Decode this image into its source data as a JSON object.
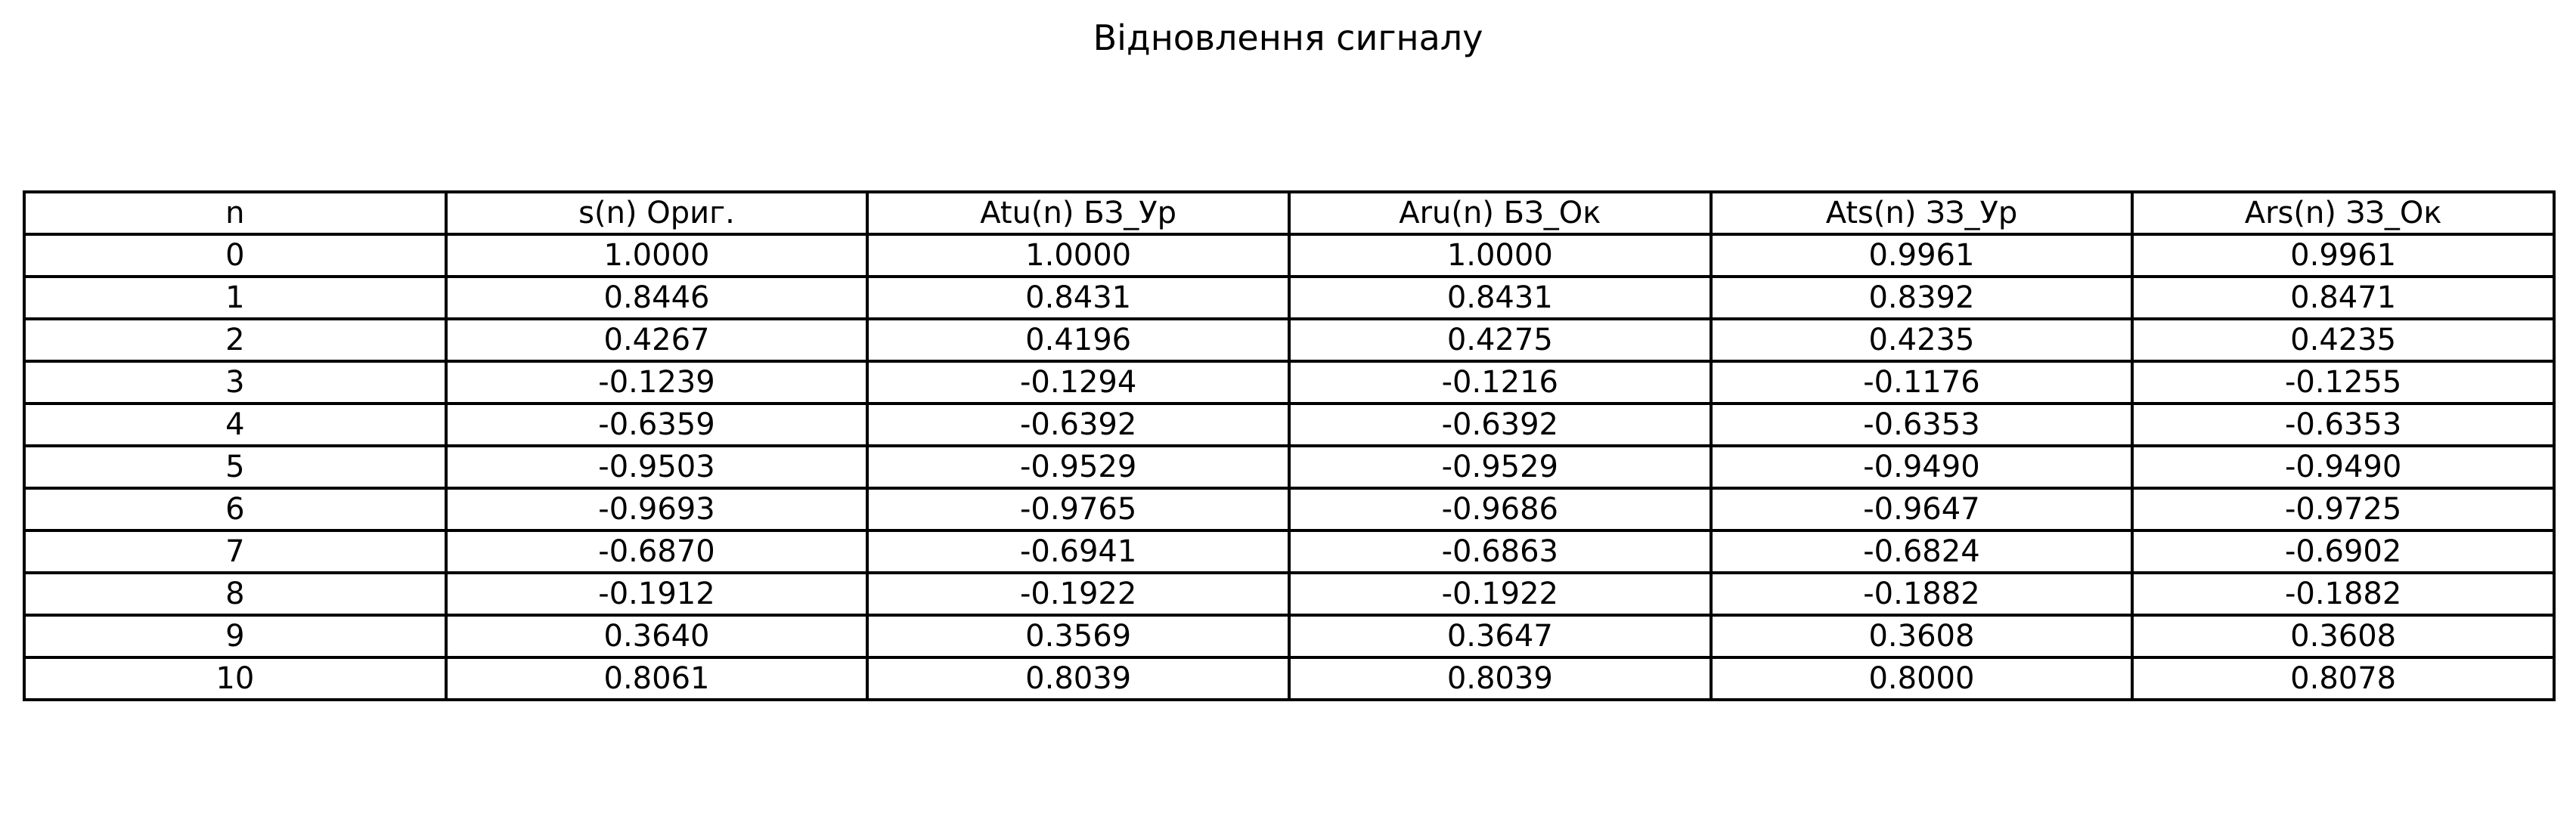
{
  "chart_data": {
    "type": "table",
    "title": "Відновлення сигналу",
    "columns": [
      "n",
      "s(n) Ориг.",
      "Atu(n) БЗ_Ур",
      "Aru(n) БЗ_Ок",
      "Ats(n) ЗЗ_Ур",
      "Ars(n) ЗЗ_Ок"
    ],
    "rows": [
      [
        "0",
        "1.0000",
        "1.0000",
        "1.0000",
        "0.9961",
        "0.9961"
      ],
      [
        "1",
        "0.8446",
        "0.8431",
        "0.8431",
        "0.8392",
        "0.8471"
      ],
      [
        "2",
        "0.4267",
        "0.4196",
        "0.4275",
        "0.4235",
        "0.4235"
      ],
      [
        "3",
        "-0.1239",
        "-0.1294",
        "-0.1216",
        "-0.1176",
        "-0.1255"
      ],
      [
        "4",
        "-0.6359",
        "-0.6392",
        "-0.6392",
        "-0.6353",
        "-0.6353"
      ],
      [
        "5",
        "-0.9503",
        "-0.9529",
        "-0.9529",
        "-0.9490",
        "-0.9490"
      ],
      [
        "6",
        "-0.9693",
        "-0.9765",
        "-0.9686",
        "-0.9647",
        "-0.9725"
      ],
      [
        "7",
        "-0.6870",
        "-0.6941",
        "-0.6863",
        "-0.6824",
        "-0.6902"
      ],
      [
        "8",
        "-0.1912",
        "-0.1922",
        "-0.1922",
        "-0.1882",
        "-0.1882"
      ],
      [
        "9",
        "0.3640",
        "0.3569",
        "0.3647",
        "0.3608",
        "0.3608"
      ],
      [
        "10",
        "0.8061",
        "0.8039",
        "0.8039",
        "0.8000",
        "0.8078"
      ]
    ]
  },
  "colors": {
    "background": "#ffffff",
    "text": "#000000",
    "grid": "#000000"
  }
}
